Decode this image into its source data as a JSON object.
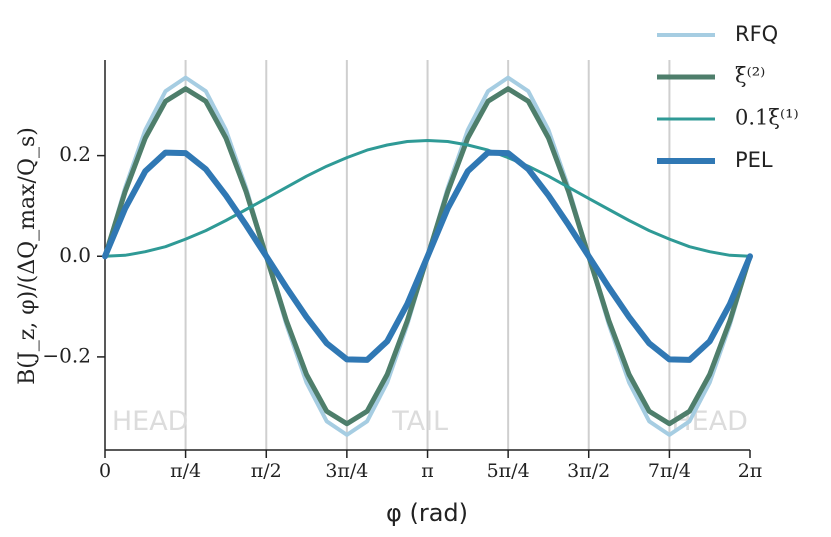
{
  "chart_data": {
    "type": "line",
    "xlabel": "φ (rad)",
    "ylabel": "B(J_z, φ)/(ΔQ_max/Q_s)",
    "x": [
      0,
      0.196,
      0.393,
      0.589,
      0.785,
      0.982,
      1.178,
      1.374,
      1.571,
      1.767,
      1.963,
      2.16,
      2.356,
      2.553,
      2.749,
      2.945,
      3.142,
      3.338,
      3.534,
      3.731,
      3.927,
      4.123,
      4.32,
      4.516,
      4.712,
      4.909,
      5.105,
      5.301,
      5.498,
      5.694,
      5.89,
      6.087,
      6.283
    ],
    "series": [
      {
        "name": "RFQ",
        "color": "#a6cde2",
        "linewidth": 4,
        "values": [
          0,
          0.136,
          0.251,
          0.328,
          0.355,
          0.328,
          0.251,
          0.136,
          0,
          -0.136,
          -0.251,
          -0.328,
          -0.355,
          -0.328,
          -0.251,
          -0.136,
          0,
          0.136,
          0.251,
          0.328,
          0.355,
          0.328,
          0.251,
          0.136,
          0,
          -0.136,
          -0.251,
          -0.328,
          -0.355,
          -0.328,
          -0.251,
          -0.136,
          0
        ]
      },
      {
        "name": "ξ⁽²⁾",
        "color": "#4e7e6b",
        "linewidth": 5,
        "values": [
          0,
          0.128,
          0.235,
          0.308,
          0.333,
          0.308,
          0.235,
          0.128,
          0,
          -0.128,
          -0.235,
          -0.308,
          -0.333,
          -0.308,
          -0.235,
          -0.128,
          0,
          0.128,
          0.235,
          0.308,
          0.333,
          0.308,
          0.235,
          0.128,
          0,
          -0.128,
          -0.235,
          -0.308,
          -0.333,
          -0.308,
          -0.235,
          -0.128,
          0
        ]
      },
      {
        "name": "0.1ξ⁽¹⁾",
        "color": "#2f9a96",
        "linewidth": 3,
        "values": [
          0,
          0.002,
          0.009,
          0.019,
          0.034,
          0.051,
          0.071,
          0.093,
          0.115,
          0.137,
          0.159,
          0.179,
          0.196,
          0.211,
          0.221,
          0.228,
          0.23,
          0.228,
          0.221,
          0.211,
          0.196,
          0.179,
          0.159,
          0.137,
          0.115,
          0.093,
          0.071,
          0.051,
          0.034,
          0.019,
          0.009,
          0.002,
          0
        ]
      },
      {
        "name": "PEL",
        "color": "#3078b4",
        "linewidth": 6,
        "values": [
          0,
          0.095,
          0.169,
          0.206,
          0.205,
          0.173,
          0.121,
          0.062,
          0,
          -0.062,
          -0.121,
          -0.173,
          -0.205,
          -0.206,
          -0.169,
          -0.095,
          0,
          0.095,
          0.169,
          0.206,
          0.205,
          0.173,
          0.121,
          0.062,
          0,
          -0.062,
          -0.121,
          -0.173,
          -0.205,
          -0.206,
          -0.169,
          -0.095,
          0
        ]
      }
    ],
    "xlim": [
      0,
      6.283
    ],
    "ylim": [
      -0.385,
      0.39
    ],
    "xticks": [
      0,
      {
        "value": 0.785,
        "label": "π/4"
      },
      {
        "value": 1.571,
        "label": "π/2"
      },
      {
        "value": 2.356,
        "label": "3π/4"
      },
      {
        "value": 3.142,
        "label": "π"
      },
      {
        "value": 3.927,
        "label": "5π/4"
      },
      {
        "value": 4.712,
        "label": "3π/2"
      },
      {
        "value": 5.498,
        "label": "7π/4"
      },
      {
        "value": 6.283,
        "label": "2π"
      }
    ],
    "yticks": [
      {
        "value": -0.2,
        "label": "−0.2"
      },
      {
        "value": 0,
        "label": "0.0"
      },
      {
        "value": 0.2,
        "label": "0.2"
      }
    ],
    "grid": true,
    "legend": "upper right",
    "annotations": [
      {
        "text": "HEAD",
        "x": 0.44,
        "y": -0.33
      },
      {
        "text": "TAIL",
        "x": 3.07,
        "y": -0.33
      },
      {
        "text": "HEAD",
        "x": 5.89,
        "y": -0.33
      }
    ]
  }
}
